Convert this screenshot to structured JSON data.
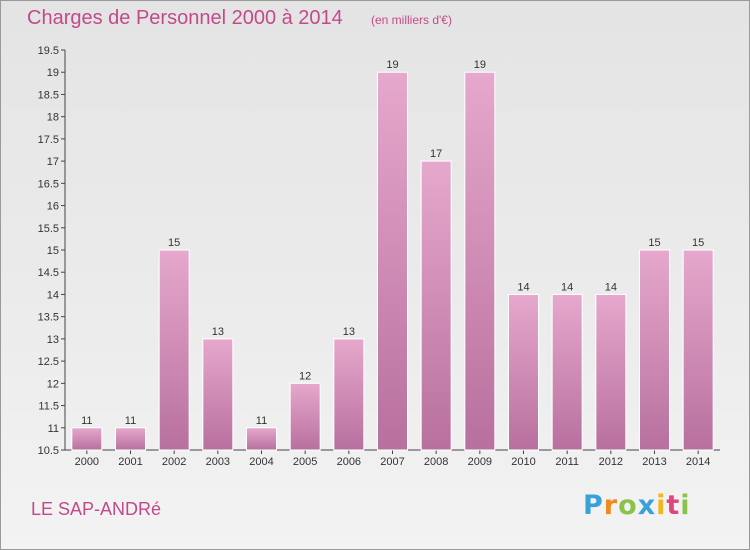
{
  "header": {
    "title": "Charges de Personnel 2000 à 2014",
    "subtitle": "(en milliers d'€)"
  },
  "footer": {
    "commune": "LE SAP-ANDRé",
    "logo_letters": [
      {
        "char": "P",
        "color": "#3aa0d8"
      },
      {
        "char": "r",
        "color": "#f08a1c"
      },
      {
        "char": "o",
        "color": "#8bc34a"
      },
      {
        "char": "x",
        "color": "#3aa0d8"
      },
      {
        "char": "i",
        "color": "#f0b81c"
      },
      {
        "char": "t",
        "color": "#e0457b"
      },
      {
        "char": "i",
        "color": "#8bc34a"
      }
    ]
  },
  "colors": {
    "bar_fill_top": "#e6a8cc",
    "bar_fill_bottom": "#b8709e",
    "bar_stroke": "#ffffff",
    "title": "#c24a8a"
  },
  "chart_data": {
    "type": "bar",
    "categories": [
      "2000",
      "2001",
      "2002",
      "2003",
      "2004",
      "2005",
      "2006",
      "2007",
      "2008",
      "2009",
      "2010",
      "2011",
      "2012",
      "2013",
      "2014"
    ],
    "values": [
      11,
      11,
      15,
      13,
      11,
      12,
      13,
      19,
      17,
      19,
      14,
      14,
      14,
      15,
      15
    ],
    "data_labels": [
      "11",
      "11",
      "15",
      "13",
      "11",
      "12",
      "13",
      "19",
      "17",
      "19",
      "14",
      "14",
      "14",
      "15",
      "15"
    ],
    "ylim": [
      10.5,
      19.5
    ],
    "yticks": [
      "10.5",
      "11",
      "11.5",
      "12",
      "12.5",
      "13",
      "13.5",
      "14",
      "14.5",
      "15",
      "15.5",
      "16",
      "16.5",
      "17",
      "17.5",
      "18",
      "18.5",
      "19",
      "19.5"
    ],
    "grid": false,
    "legend": "none"
  }
}
